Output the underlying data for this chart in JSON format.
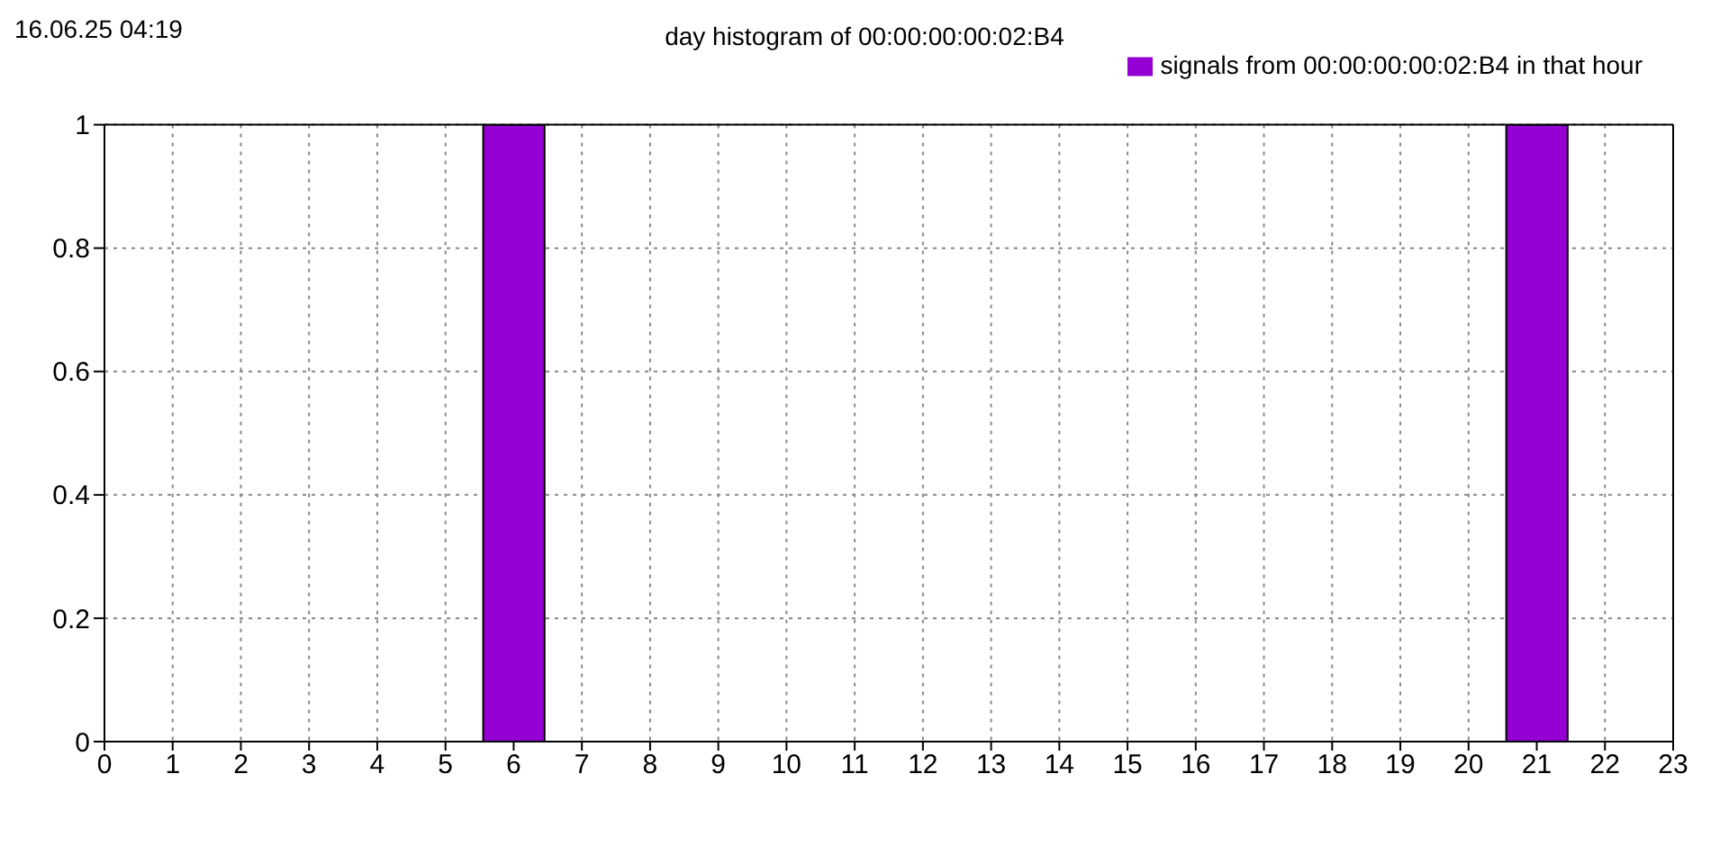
{
  "chart_data": {
    "type": "bar",
    "title": "day histogram of 00:00:00:00:02:B4",
    "annotations": [
      "16.06.25 04:19"
    ],
    "x": [
      0,
      1,
      2,
      3,
      4,
      5,
      6,
      7,
      8,
      9,
      10,
      11,
      12,
      13,
      14,
      15,
      16,
      17,
      18,
      19,
      20,
      21,
      22
    ],
    "series": [
      {
        "name": "signals from 00:00:00:00:02:B4 in that hour",
        "color": "#9400d3",
        "values": [
          0,
          0,
          0,
          0,
          0,
          0,
          1,
          0,
          0,
          0,
          0,
          0,
          0,
          0,
          0,
          0,
          0,
          0,
          0,
          0,
          0,
          1,
          0
        ]
      }
    ],
    "xlim": [
      0,
      23
    ],
    "xticks": [
      0,
      1,
      2,
      3,
      4,
      5,
      6,
      7,
      8,
      9,
      10,
      11,
      12,
      13,
      14,
      15,
      16,
      17,
      18,
      19,
      20,
      21,
      22,
      23
    ],
    "ylim": [
      0,
      1
    ],
    "yticks": [
      0,
      0.2,
      0.4,
      0.6,
      0.8,
      1
    ],
    "grid": true,
    "legend": "top right"
  }
}
